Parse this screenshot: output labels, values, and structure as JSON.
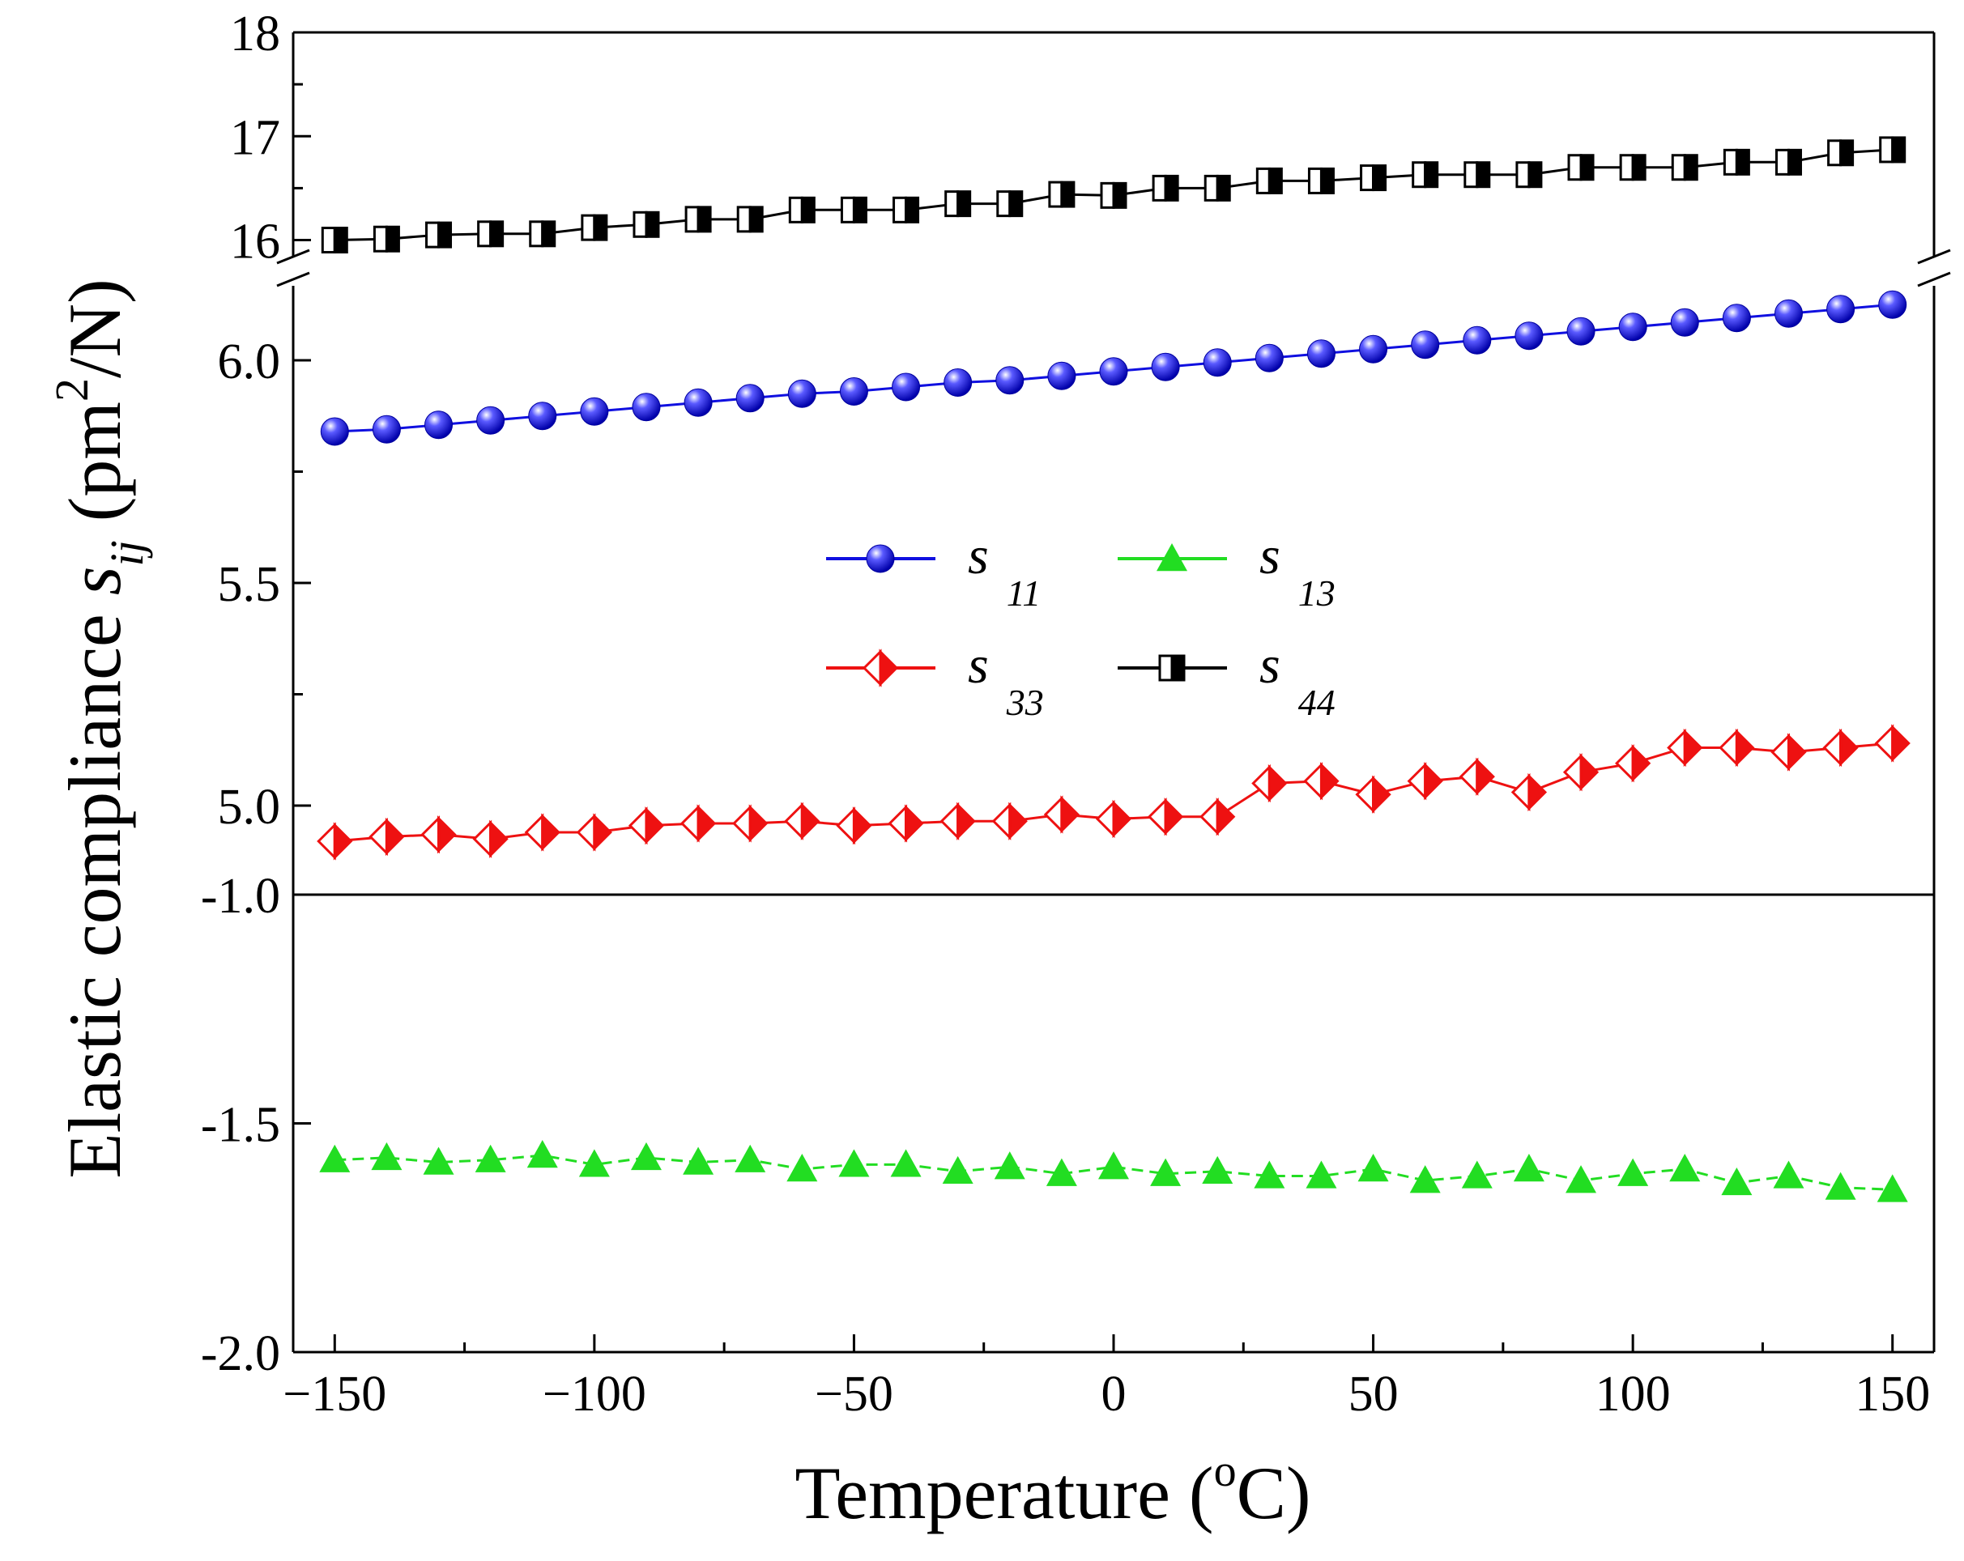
{
  "chart_data": {
    "type": "line",
    "x": [
      -150,
      -140,
      -130,
      -120,
      -110,
      -100,
      -90,
      -80,
      -70,
      -60,
      -50,
      -40,
      -30,
      -20,
      -10,
      0,
      10,
      20,
      30,
      40,
      50,
      60,
      70,
      80,
      90,
      100,
      110,
      120,
      130,
      140,
      150
    ],
    "xlabel": "Temperature (",
    "xlabel_sup": "o",
    "xlabel_end": "C)",
    "ylabel": "Elastic compliance ",
    "ylabel_sym": "s",
    "ylabel_sub": "ij",
    "ylabel_unit": " (pm",
    "ylabel_sup": "2",
    "ylabel_end": "/N)",
    "xlim": [
      -158,
      158
    ],
    "xticks": [
      "−150",
      "−100",
      "−50",
      "0",
      "50",
      "100",
      "150"
    ],
    "xtick_values": [
      -150,
      -100,
      -50,
      0,
      50,
      100,
      150
    ],
    "panels": [
      {
        "id": "top",
        "ylim": [
          15.7,
          18
        ],
        "yticks": [
          "16",
          "17",
          "18"
        ],
        "ytick_values": [
          16,
          17,
          18
        ]
      },
      {
        "id": "mid",
        "ylim": [
          4.8,
          6.2
        ],
        "yticks": [
          "5.0",
          "5.5",
          "6.0"
        ],
        "ytick_values": [
          5.0,
          5.5,
          6.0
        ]
      },
      {
        "id": "bottom",
        "ylim": [
          -2.0,
          -1.0
        ],
        "yticks": [
          "-1.0",
          "-1.5",
          "-2.0"
        ],
        "ytick_values": [
          -1.0,
          -1.5,
          -2.0
        ]
      }
    ],
    "series": [
      {
        "name": "s11",
        "sym": "s",
        "sub": "11",
        "panel": "mid",
        "color": "#1010e0",
        "marker": "sphere",
        "linestyle": "solid",
        "values": [
          5.84,
          5.845,
          5.855,
          5.865,
          5.875,
          5.885,
          5.895,
          5.905,
          5.915,
          5.925,
          5.93,
          5.94,
          5.95,
          5.955,
          5.965,
          5.975,
          5.985,
          5.995,
          6.005,
          6.015,
          6.025,
          6.035,
          6.045,
          6.055,
          6.065,
          6.075,
          6.085,
          6.095,
          6.105,
          6.115,
          6.125
        ]
      },
      {
        "name": "s13",
        "sym": "s",
        "sub": "13",
        "panel": "bottom",
        "color": "#22dd22",
        "marker": "triangle",
        "linestyle": "dashed",
        "values": [
          -1.58,
          -1.575,
          -1.585,
          -1.58,
          -1.57,
          -1.59,
          -1.575,
          -1.585,
          -1.58,
          -1.6,
          -1.59,
          -1.59,
          -1.605,
          -1.595,
          -1.61,
          -1.595,
          -1.61,
          -1.605,
          -1.615,
          -1.615,
          -1.6,
          -1.625,
          -1.615,
          -1.6,
          -1.625,
          -1.61,
          -1.6,
          -1.63,
          -1.615,
          -1.64,
          -1.645
        ]
      },
      {
        "name": "s33",
        "sym": "s",
        "sub": "33",
        "panel": "mid",
        "color": "#ee1111",
        "marker": "half-diamond",
        "linestyle": "solid",
        "values": [
          4.92,
          4.93,
          4.935,
          4.925,
          4.94,
          4.94,
          4.955,
          4.96,
          4.96,
          4.965,
          4.955,
          4.96,
          4.965,
          4.965,
          4.98,
          4.97,
          4.975,
          4.975,
          5.05,
          5.055,
          5.025,
          5.055,
          5.065,
          5.03,
          5.075,
          5.095,
          5.13,
          5.13,
          5.12,
          5.13,
          5.14
        ]
      },
      {
        "name": "s44",
        "sym": "s",
        "sub": "44",
        "panel": "top",
        "color": "#000000",
        "marker": "half-square",
        "linestyle": "solid",
        "values": [
          16.0,
          16.01,
          16.05,
          16.06,
          16.06,
          16.12,
          16.15,
          16.2,
          16.2,
          16.29,
          16.29,
          16.29,
          16.35,
          16.35,
          16.44,
          16.43,
          16.5,
          16.5,
          16.57,
          16.57,
          16.6,
          16.63,
          16.63,
          16.63,
          16.7,
          16.7,
          16.7,
          16.75,
          16.75,
          16.84,
          16.87
        ]
      }
    ],
    "legend_position": "center"
  }
}
